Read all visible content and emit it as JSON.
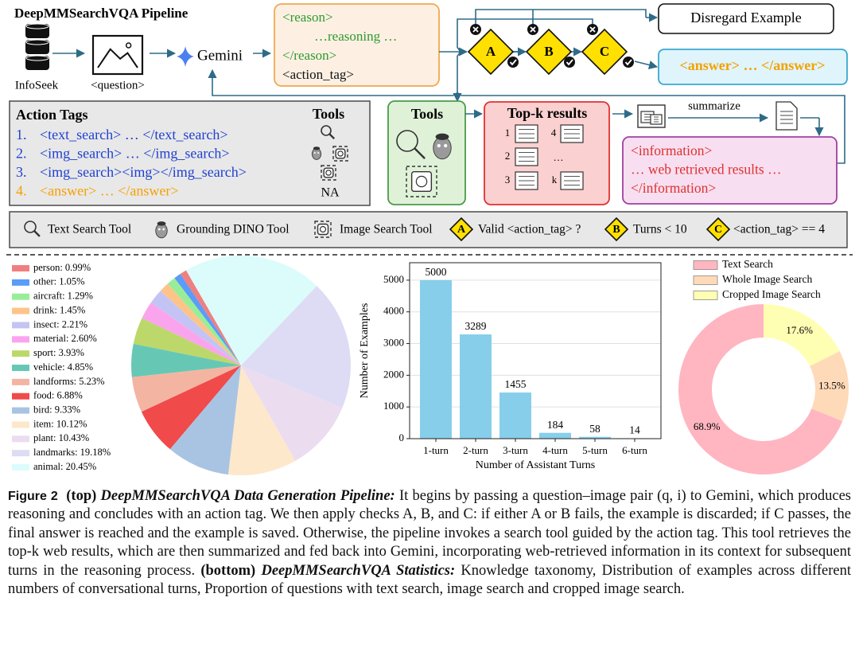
{
  "pipeline": {
    "title": "DeepMMSearchVQA Pipeline",
    "source": "InfoSeek",
    "question": "<question>",
    "model": "Gemini",
    "reason_box": [
      "<reason>",
      "…reasoning …",
      "</reason>",
      "<action_tag>"
    ],
    "checks": [
      "A",
      "B",
      "C"
    ],
    "discard": "Disregard Example",
    "answer": "<answer> … </answer>",
    "action_tags": {
      "title": "Action Tags",
      "tools_title": "Tools",
      "items": [
        {
          "number": "1.",
          "tag": "<text_search> … </text_search>"
        },
        {
          "number": "2.",
          "tag": "<img_search> … </img_search>"
        },
        {
          "number": "3.",
          "tag": "<img_search><img></img_search>"
        },
        {
          "number": "4.",
          "tag": "<answer> … </answer>"
        }
      ],
      "na": "NA"
    },
    "tools": "Tools",
    "topk": {
      "title": "Top-k results",
      "ranks": [
        "1",
        "4",
        "2",
        "…",
        "3",
        "k"
      ]
    },
    "summarize": "summarize",
    "information": [
      "<information>",
      "… web retrieved results …",
      "</information>"
    ],
    "legend": [
      {
        "text": "Text Search Tool"
      },
      {
        "text": "Grounding DINO Tool"
      },
      {
        "text": "Image Search Tool"
      },
      {
        "key": "A",
        "text": "Valid <action_tag> ?"
      },
      {
        "key": "B",
        "text": "Turns < 10"
      },
      {
        "key": "C",
        "text": "<action_tag> == 4"
      }
    ]
  },
  "chart_data": [
    {
      "type": "pie",
      "categories": [
        "person: 0.99%",
        "other: 1.05%",
        "aircraft: 1.29%",
        "drink: 1.45%",
        "insect: 2.21%",
        "material: 2.60%",
        "sport: 3.93%",
        "vehicle: 4.85%",
        "landforms: 5.23%",
        "food: 6.88%",
        "bird: 9.33%",
        "item: 10.12%",
        "plant: 10.43%",
        "landmarks: 19.18%",
        "animal: 20.45%"
      ],
      "values": [
        0.99,
        1.05,
        1.29,
        1.45,
        2.21,
        2.6,
        3.93,
        4.85,
        5.23,
        6.88,
        9.33,
        10.12,
        10.43,
        19.18,
        20.45
      ],
      "colors": [
        "#f08080",
        "#5a9cf8",
        "#98ee98",
        "#fdc48a",
        "#c4c4f4",
        "#fba4ee",
        "#bcd86a",
        "#66c8b4",
        "#f4b4a2",
        "#f04a4a",
        "#a8c4e2",
        "#fde8cc",
        "#ebdcf0",
        "#dedcf4",
        "#dcfcfc"
      ]
    },
    {
      "type": "bar",
      "categories": [
        "1-turn",
        "2-turn",
        "3-turn",
        "4-turn",
        "5-turn",
        "6-turn"
      ],
      "values": [
        5000,
        3289,
        1455,
        184,
        58,
        14
      ],
      "color": "#87ceeb",
      "xlabel": "Number of Assistant Turns",
      "ylabel": "Number of Examples",
      "ylim": [
        0,
        5550
      ],
      "yticks": [
        0,
        1000,
        2000,
        3000,
        4000,
        5000
      ],
      "grid": true
    },
    {
      "type": "donut",
      "categories": [
        "Text Search",
        "Whole Image Search",
        "Cropped Image Search"
      ],
      "values": [
        68.9,
        13.5,
        17.6
      ],
      "value_labels": [
        "68.9%",
        "13.5%",
        "17.6%"
      ],
      "colors": [
        "#ffb6c1",
        "#ffdab9",
        "#ffffb4"
      ]
    }
  ],
  "caption": {
    "label": "Figure 2",
    "top": "(top)",
    "top_heading": "DeepMMSearchVQA Data Generation Pipeline:",
    "top_body": "It begins by passing a question–image pair (q, i) to Gemini, which produces reasoning and concludes with an action tag. We then apply checks A, B, and C: if either A or B fails, the example is discarded; if C passes, the final answer is reached and the example is saved. Otherwise, the pipeline invokes a search tool guided by the action tag. This tool retrieves the top-k web results, which are then summarized and fed back into Gemini, incorporating web-retrieved information in its context for subsequent turns in the reasoning process.",
    "bottom": "(bottom)",
    "bottom_heading": "DeepMMSearchVQA Statistics:",
    "bottom_body": "Knowledge taxonomy, Distribution of examples across different numbers of conversational turns, Proportion of questions with text search, image search and cropped image search."
  }
}
